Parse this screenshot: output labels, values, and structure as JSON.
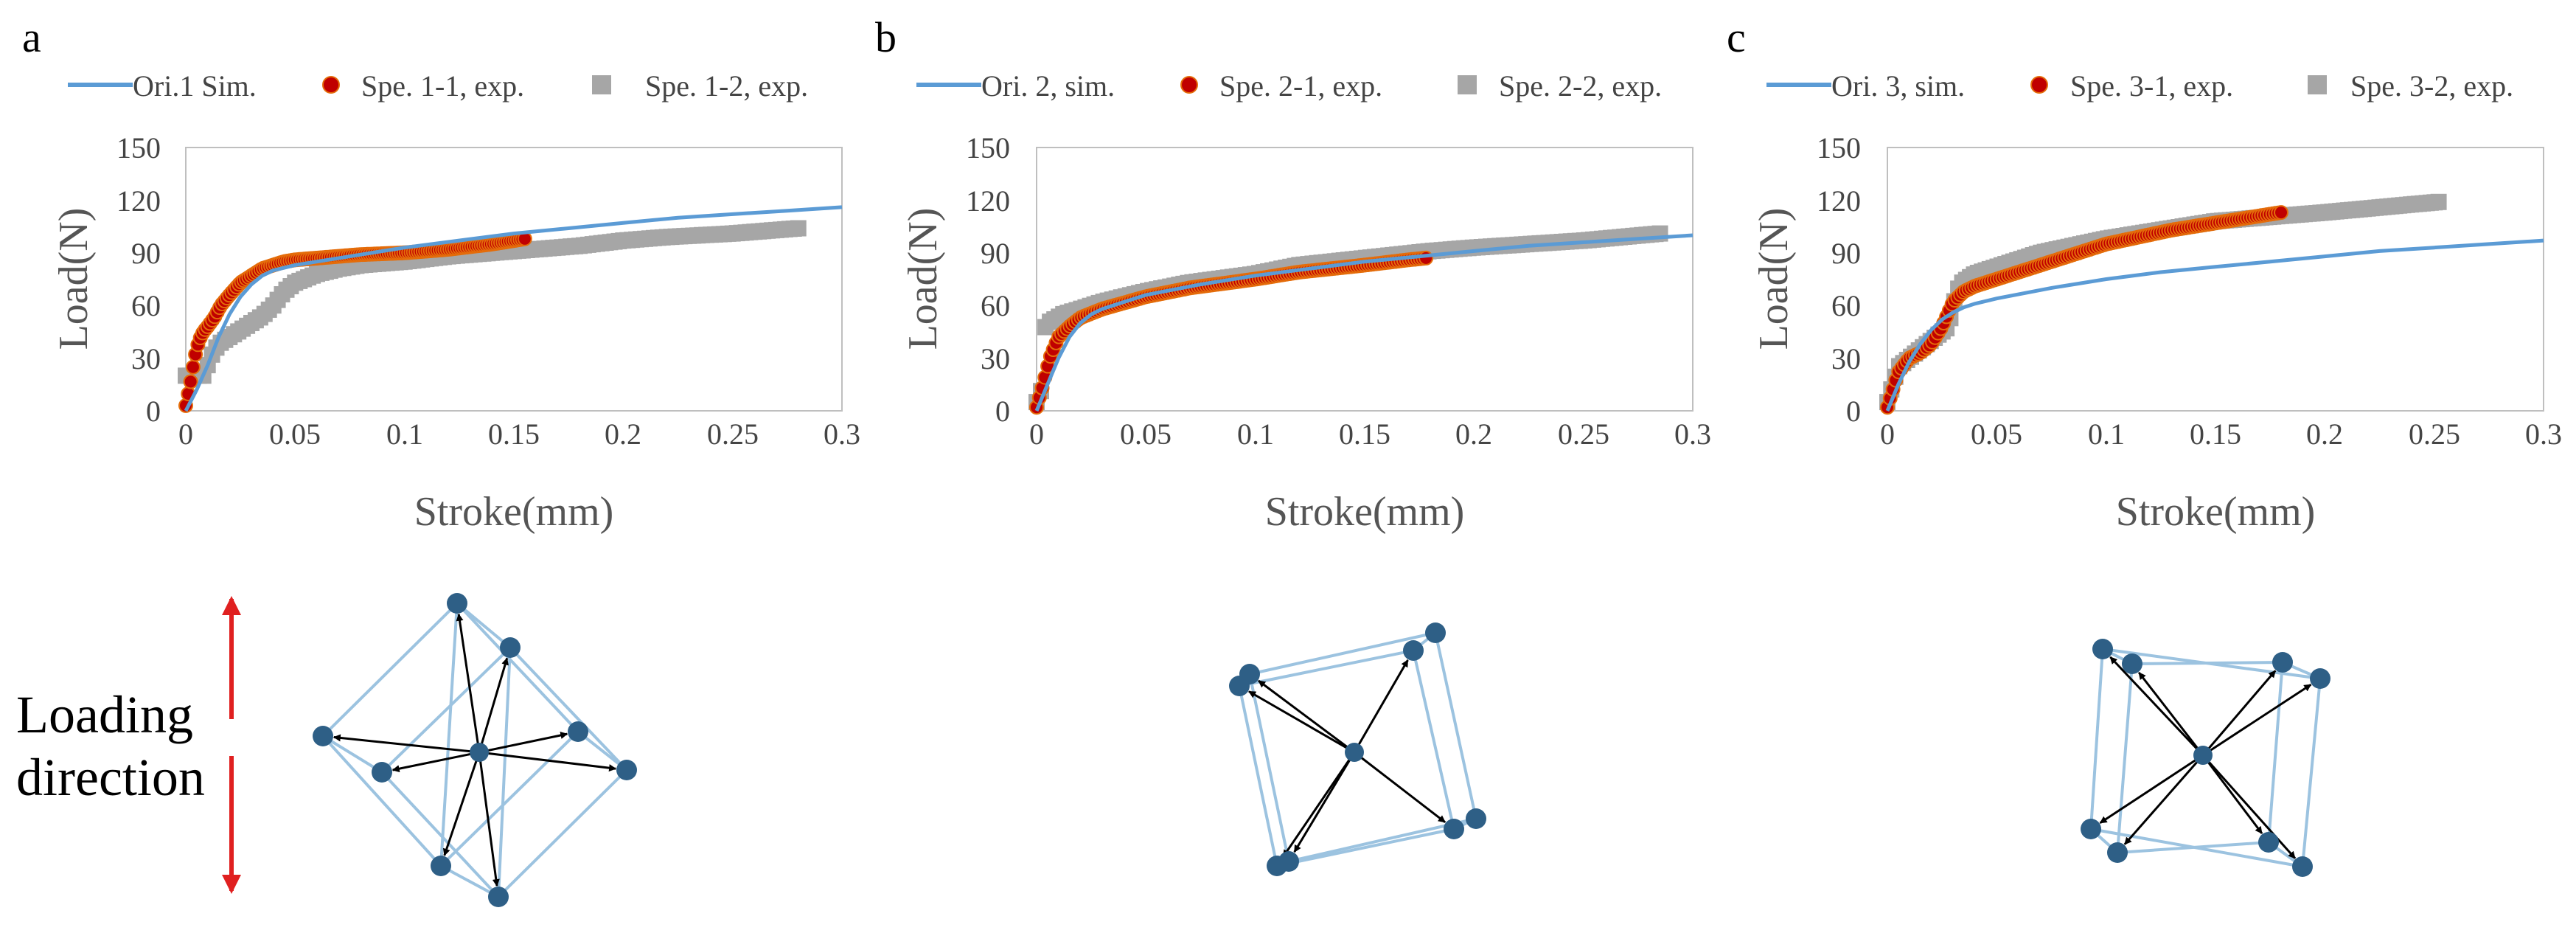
{
  "colors": {
    "sim": "#5b9bd5",
    "exp1": "#c00000",
    "exp1_edge": "#e46c0a",
    "exp2": "#a6a6a6",
    "node": "#2e5f86",
    "edge": "#9cc3e0",
    "arrow": "#000000",
    "loading": "#e02020"
  },
  "loading_label": {
    "line1": "Loading",
    "line2": "direction"
  },
  "icons": {
    "loading_arrow": "double-headed-arrow-icon"
  },
  "chart_data": [
    {
      "panel": "a",
      "type": "line",
      "xlabel": "Stroke(mm)",
      "ylabel": "Load(N)",
      "xlim": [
        0,
        0.3
      ],
      "ylim": [
        0,
        150
      ],
      "xticks": [
        0,
        0.05,
        0.1,
        0.15,
        0.2,
        0.25,
        0.3
      ],
      "xtick_labels": [
        "0",
        "0.05",
        "0.1",
        "0.15",
        "0.2",
        "0.25",
        "0.3"
      ],
      "yticks": [
        0,
        30,
        60,
        90,
        120,
        150
      ],
      "ytick_labels": [
        "0",
        "30",
        "60",
        "90",
        "120",
        "150"
      ],
      "series": [
        {
          "name": "Ori.1 Sim.",
          "kind": "line",
          "color": "#5b9bd5",
          "x": [
            0,
            0.005,
            0.01,
            0.015,
            0.02,
            0.025,
            0.03,
            0.035,
            0.04,
            0.05,
            0.06,
            0.08,
            0.1,
            0.125,
            0.15,
            0.175,
            0.2,
            0.225,
            0.25,
            0.275,
            0.3
          ],
          "y": [
            0,
            12,
            26,
            42,
            55,
            65,
            72,
            77,
            80,
            83,
            85,
            89,
            93,
            97,
            101,
            104,
            107,
            110,
            112,
            114,
            116
          ]
        },
        {
          "name": "Spe. 1-1, exp.",
          "kind": "scatter-dense",
          "color": "#c00000",
          "x": [
            0,
            0.002,
            0.004,
            0.006,
            0.008,
            0.01,
            0.013,
            0.016,
            0.02,
            0.025,
            0.03,
            0.035,
            0.04,
            0.045,
            0.05,
            0.06,
            0.07,
            0.08,
            0.1,
            0.12,
            0.14,
            0.155
          ],
          "y": [
            3,
            15,
            30,
            40,
            45,
            48,
            53,
            60,
            66,
            73,
            77,
            81,
            83,
            85,
            86,
            87,
            88,
            89,
            90,
            92,
            95,
            98
          ]
        },
        {
          "name": "Spe. 1-2, exp.",
          "kind": "scatter-dense",
          "color": "#a6a6a6",
          "x": [
            0,
            0.008,
            0.012,
            0.015,
            0.02,
            0.025,
            0.03,
            0.035,
            0.04,
            0.045,
            0.05,
            0.06,
            0.07,
            0.08,
            0.1,
            0.12,
            0.15,
            0.18,
            0.2,
            0.22,
            0.25,
            0.28
          ],
          "y": [
            20,
            20,
            32,
            38,
            42,
            46,
            50,
            54,
            60,
            68,
            73,
            78,
            81,
            83,
            85,
            88,
            91,
            94,
            97,
            99,
            101,
            104
          ]
        }
      ]
    },
    {
      "panel": "b",
      "type": "line",
      "xlabel": "Stroke(mm)",
      "ylabel": "Load(N)",
      "xlim": [
        0,
        0.3
      ],
      "ylim": [
        0,
        150
      ],
      "xticks": [
        0,
        0.05,
        0.1,
        0.15,
        0.2,
        0.25,
        0.3
      ],
      "xtick_labels": [
        "0",
        "0.05",
        "0.1",
        "0.15",
        "0.2",
        "0.25",
        "0.3"
      ],
      "yticks": [
        0,
        30,
        60,
        90,
        120,
        150
      ],
      "ytick_labels": [
        "0",
        "30",
        "60",
        "90",
        "120",
        "150"
      ],
      "series": [
        {
          "name": "Ori. 2, sim.",
          "kind": "line",
          "color": "#5b9bd5",
          "x": [
            0,
            0.005,
            0.01,
            0.015,
            0.02,
            0.025,
            0.03,
            0.04,
            0.05,
            0.075,
            0.1,
            0.125,
            0.15,
            0.175,
            0.2,
            0.225,
            0.25,
            0.275,
            0.3
          ],
          "y": [
            0,
            15,
            30,
            42,
            50,
            55,
            58,
            62,
            66,
            72,
            77,
            81,
            85,
            88,
            91,
            94,
            96,
            98,
            100
          ]
        },
        {
          "name": "Spe. 2-1, exp.",
          "kind": "scatter-dense",
          "color": "#c00000",
          "x": [
            0,
            0.003,
            0.006,
            0.01,
            0.015,
            0.02,
            0.03,
            0.05,
            0.07,
            0.1,
            0.12,
            0.15,
            0.17,
            0.178
          ],
          "y": [
            2,
            15,
            30,
            42,
            48,
            53,
            58,
            65,
            70,
            75,
            79,
            83,
            86,
            87
          ]
        },
        {
          "name": "Spe. 2-2, exp.",
          "kind": "scatter-dense",
          "color": "#a6a6a6",
          "x": [
            0,
            0.002,
            0.003,
            0.005,
            0.008,
            0.012,
            0.02,
            0.03,
            0.05,
            0.07,
            0.1,
            0.12,
            0.15,
            0.18,
            0.2,
            0.25,
            0.285
          ],
          "y": [
            5,
            10,
            45,
            50,
            52,
            55,
            58,
            62,
            68,
            73,
            78,
            83,
            87,
            91,
            93,
            97,
            101
          ]
        }
      ]
    },
    {
      "panel": "c",
      "type": "line",
      "xlabel": "Stroke(mm)",
      "ylabel": "Load(N)",
      "xlim": [
        0,
        0.3
      ],
      "ylim": [
        0,
        150
      ],
      "xticks": [
        0,
        0.05,
        0.1,
        0.15,
        0.2,
        0.25,
        0.3
      ],
      "xtick_labels": [
        "0",
        "0.05",
        "0.1",
        "0.15",
        "0.2",
        "0.25",
        "0.3"
      ],
      "yticks": [
        0,
        30,
        60,
        90,
        120,
        150
      ],
      "ytick_labels": [
        "0",
        "30",
        "60",
        "90",
        "120",
        "150"
      ],
      "series": [
        {
          "name": "Ori. 3, sim.",
          "kind": "line",
          "color": "#5b9bd5",
          "x": [
            0,
            0.005,
            0.01,
            0.015,
            0.02,
            0.025,
            0.03,
            0.035,
            0.04,
            0.05,
            0.075,
            0.1,
            0.125,
            0.15,
            0.175,
            0.2,
            0.225,
            0.25,
            0.275,
            0.3
          ],
          "y": [
            0,
            15,
            28,
            38,
            46,
            52,
            56,
            59,
            61,
            64,
            70,
            75,
            79,
            82,
            85,
            88,
            91,
            93,
            95,
            97
          ]
        },
        {
          "name": "Spe. 3-1, exp.",
          "kind": "scatter-dense",
          "color": "#c00000",
          "x": [
            0,
            0.005,
            0.01,
            0.015,
            0.02,
            0.025,
            0.03,
            0.035,
            0.04,
            0.05,
            0.07,
            0.1,
            0.13,
            0.15,
            0.18
          ],
          "y": [
            2,
            22,
            30,
            33,
            38,
            48,
            62,
            68,
            71,
            75,
            83,
            95,
            103,
            107,
            113
          ]
        },
        {
          "name": "Spe. 3-2, exp.",
          "kind": "scatter-dense",
          "color": "#a6a6a6",
          "x": [
            0,
            0.005,
            0.01,
            0.015,
            0.02,
            0.025,
            0.028,
            0.03,
            0.033,
            0.04,
            0.05,
            0.07,
            0.1,
            0.13,
            0.15,
            0.2,
            0.252
          ],
          "y": [
            5,
            25,
            30,
            35,
            40,
            45,
            48,
            60,
            72,
            78,
            82,
            90,
            98,
            104,
            108,
            113,
            119
          ]
        }
      ]
    }
  ]
}
